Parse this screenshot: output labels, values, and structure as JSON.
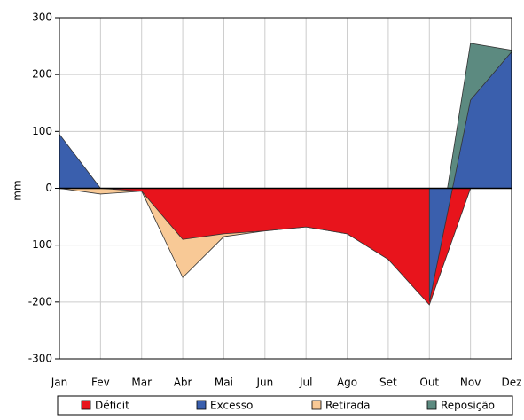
{
  "chart_data": {
    "type": "area",
    "y_label": "mm",
    "categories": [
      "Jan",
      "Fev",
      "Mar",
      "Abr",
      "Mai",
      "Jun",
      "Jul",
      "Ago",
      "Set",
      "Out",
      "Nov",
      "Dez"
    ],
    "series": [
      {
        "name": "Retirada",
        "color": "#f8c996",
        "values": [
          0,
          -10,
          -5,
          -157,
          -85,
          -75,
          -68,
          -80,
          -125,
          -200,
          0,
          0
        ]
      },
      {
        "name": "Reposição",
        "color": "#5c8a80",
        "values": [
          0,
          0,
          0,
          0,
          0,
          0,
          0,
          0,
          0,
          -200,
          255,
          243
        ]
      },
      {
        "name": "Déficit",
        "color": "#e8141c",
        "values": [
          0,
          0,
          -5,
          -90,
          -80,
          -75,
          -68,
          -80,
          -125,
          -205,
          0,
          0
        ]
      },
      {
        "name": "Excesso",
        "color": "#3a5fad",
        "values": [
          95,
          0,
          null,
          null,
          null,
          null,
          null,
          null,
          null,
          -200,
          155,
          240
        ]
      }
    ],
    "legend_order": [
      2,
      3,
      0,
      1
    ],
    "ylim": [
      -300,
      300
    ],
    "yticks": [
      -300,
      -200,
      -100,
      0,
      100,
      200,
      300
    ],
    "grid": true
  }
}
